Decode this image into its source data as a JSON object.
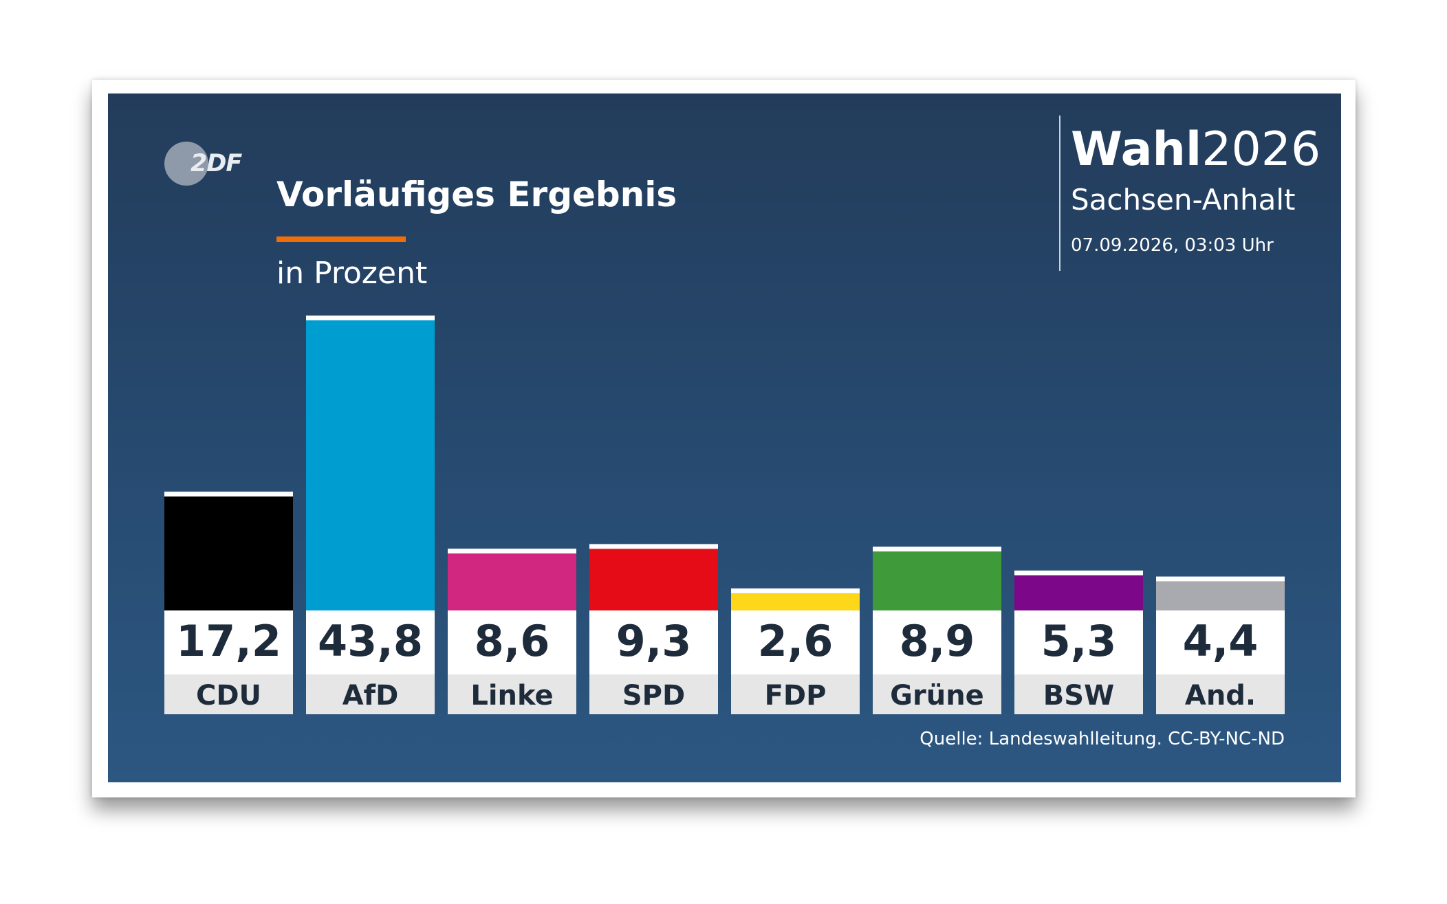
{
  "header": {
    "logo_text": "2DF",
    "title": "Vorläufiges Ergebnis",
    "subtitle": "in Prozent",
    "brand_bold": "Wahl",
    "brand_year": "2026",
    "region": "Sachsen-Anhalt",
    "datetime": "07.09.2026, 03:03 Uhr"
  },
  "footer": {
    "source": "Quelle: Landeswahlleitung. CC-BY-NC-ND"
  },
  "colors": {
    "panel_top": "#233c5b",
    "panel_bottom": "#2c5781",
    "accent": "#f06d0a",
    "value_box": "#ffffff",
    "label_box": "#e6e6e6",
    "text_dark": "#1e2b3b"
  },
  "chart_data": {
    "type": "bar",
    "categories": [
      "CDU",
      "AfD",
      "Linke",
      "SPD",
      "FDP",
      "Grüne",
      "BSW",
      "And."
    ],
    "values": [
      17.2,
      43.8,
      8.6,
      9.3,
      2.6,
      8.9,
      5.3,
      4.4
    ],
    "value_labels": [
      "17,2",
      "43,8",
      "8,6",
      "9,3",
      "2,6",
      "8,9",
      "5,3",
      "4,4"
    ],
    "colors": [
      "#000000",
      "#009ed0",
      "#d12781",
      "#e60c17",
      "#fdd71a",
      "#3f9b39",
      "#7c0788",
      "#a8aab0"
    ],
    "title": "Vorläufiges Ergebnis",
    "ylabel": "",
    "xlabel": "",
    "unit": "in Prozent",
    "ylim": [
      0,
      43.8
    ],
    "grid": false,
    "legend": "none"
  }
}
